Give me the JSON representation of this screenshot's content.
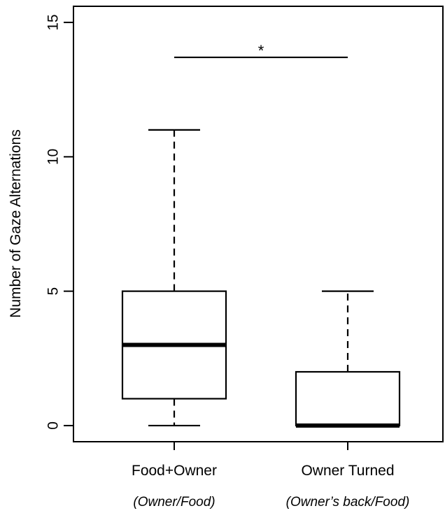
{
  "chart_data": {
    "type": "box",
    "title": "",
    "xlabel": "",
    "ylabel": "Number of Gaze Alternations",
    "ylim": [
      -0.6,
      15.6
    ],
    "yticks": [
      0,
      5,
      10,
      15
    ],
    "ytick_labels": [
      "0",
      "5",
      "10",
      "15"
    ],
    "grid": false,
    "categories": [
      "Food+Owner",
      "Owner Turned"
    ],
    "subcategories": [
      "(Owner/Food)",
      "(Owner’s back/Food)"
    ],
    "boxes": [
      {
        "whisker_low": 0,
        "q1": 1,
        "median": 3,
        "q3": 5,
        "whisker_high": 11
      },
      {
        "whisker_low": 0,
        "q1": 0,
        "median": 0,
        "q3": 2,
        "whisker_high": 5
      }
    ],
    "significance": {
      "from": 0,
      "to": 1,
      "y": 13.7,
      "label": "*"
    }
  }
}
